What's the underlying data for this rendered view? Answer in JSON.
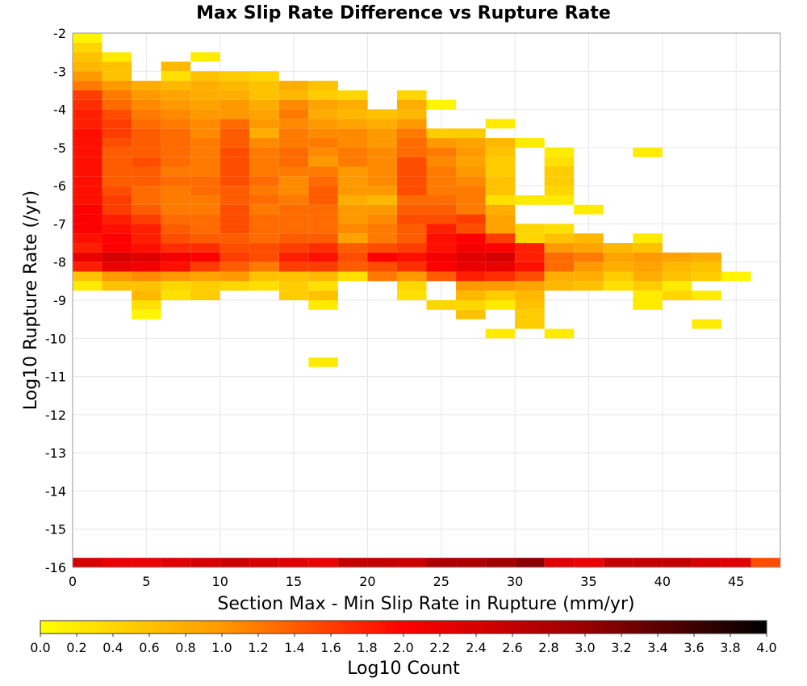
{
  "chart_data": {
    "type": "heatmap",
    "title": "Max Slip Rate Difference vs Rupture Rate",
    "xlabel": "Section Max - Min Slip Rate in Rupture (mm/yr)",
    "ylabel": "Log10 Rupture Rate (/yr)",
    "xlim": [
      0,
      48
    ],
    "ylim": [
      -16,
      -2
    ],
    "xticks": [
      "0",
      "5",
      "10",
      "15",
      "20",
      "25",
      "30",
      "35",
      "40",
      "45"
    ],
    "yticks": [
      "-2",
      "-3",
      "-4",
      "-5",
      "-6",
      "-7",
      "-8",
      "-9",
      "-10",
      "-11",
      "-12",
      "-13",
      "-14",
      "-15",
      "-16"
    ],
    "bin_width": {
      "x": 2,
      "y": 0.25
    },
    "grid": true,
    "colorbar": {
      "label": "Log10 Count",
      "min": 0.0,
      "max": 4.0,
      "ticks": [
        "0.0",
        "0.2",
        "0.4",
        "0.6",
        "0.8",
        "1.0",
        "1.2",
        "1.4",
        "1.6",
        "1.8",
        "2.0",
        "2.2",
        "2.4",
        "2.6",
        "2.8",
        "3.0",
        "3.2",
        "3.4",
        "3.6",
        "3.8",
        "4.0"
      ],
      "colors": [
        "#ffff00",
        "#ff9900",
        "#ff0000",
        "#990000",
        "#000000"
      ]
    },
    "rows": [
      {
        "y": -2.25,
        "values": {
          "0": 0.1
        }
      },
      {
        "y": -2.5,
        "values": {
          "0": 0.4
        }
      },
      {
        "y": -2.75,
        "values": {
          "0": 0.6,
          "2": 0.2,
          "8": 0.2
        }
      },
      {
        "y": -3.0,
        "values": {
          "0": 0.7,
          "2": 0.6,
          "6": 0.7
        }
      },
      {
        "y": -3.25,
        "values": {
          "0": 1.0,
          "2": 0.6,
          "6": 0.3,
          "8": 0.6,
          "10": 0.5,
          "12": 0.4
        }
      },
      {
        "y": -3.5,
        "values": {
          "0": 1.2,
          "2": 1.0,
          "4": 0.8,
          "6": 0.7,
          "8": 0.8,
          "10": 0.7,
          "12": 0.6,
          "14": 0.8,
          "16": 0.6
        }
      },
      {
        "y": -3.75,
        "values": {
          "0": 1.6,
          "2": 1.2,
          "4": 1.0,
          "6": 0.9,
          "8": 0.8,
          "10": 0.8,
          "12": 0.6,
          "14": 0.7,
          "16": 0.5,
          "18": 0.4,
          "22": 0.4
        }
      },
      {
        "y": -4.0,
        "values": {
          "0": 1.7,
          "2": 1.3,
          "4": 1.1,
          "6": 1.0,
          "8": 0.9,
          "10": 1.0,
          "12": 0.8,
          "14": 1.1,
          "16": 0.9,
          "18": 0.8,
          "22": 0.8,
          "24": 0.1
        }
      },
      {
        "y": -4.25,
        "values": {
          "0": 1.8,
          "2": 1.5,
          "4": 1.2,
          "6": 1.1,
          "8": 1.0,
          "10": 1.0,
          "12": 0.9,
          "14": 1.2,
          "16": 0.8,
          "18": 0.7,
          "20": 0.6,
          "22": 0.7
        }
      },
      {
        "y": -4.5,
        "values": {
          "0": 1.8,
          "2": 1.6,
          "4": 1.3,
          "6": 1.2,
          "8": 1.1,
          "10": 1.3,
          "12": 1.0,
          "14": 1.1,
          "16": 1.0,
          "18": 0.9,
          "20": 0.8,
          "22": 1.0,
          "28": 0.2
        }
      },
      {
        "y": -4.75,
        "values": {
          "0": 1.9,
          "2": 1.6,
          "4": 1.4,
          "6": 1.3,
          "8": 1.1,
          "10": 1.4,
          "12": 0.8,
          "14": 1.2,
          "16": 1.1,
          "18": 1.1,
          "20": 1.0,
          "22": 1.2,
          "24": 0.5,
          "26": 0.5
        }
      },
      {
        "y": -5.0,
        "values": {
          "0": 1.9,
          "2": 1.5,
          "4": 1.4,
          "6": 1.3,
          "8": 1.2,
          "10": 1.4,
          "12": 1.1,
          "14": 1.2,
          "16": 1.2,
          "18": 1.1,
          "20": 1.0,
          "22": 1.3,
          "24": 1.0,
          "26": 0.9,
          "28": 0.7,
          "30": 0.2
        }
      },
      {
        "y": -5.25,
        "values": {
          "0": 1.9,
          "2": 1.4,
          "4": 1.4,
          "6": 1.3,
          "8": 1.2,
          "10": 1.5,
          "12": 1.2,
          "14": 1.3,
          "16": 1.1,
          "18": 1.2,
          "20": 1.1,
          "22": 1.3,
          "24": 1.2,
          "26": 1.0,
          "28": 0.6,
          "32": 0.2,
          "38": 0.2
        }
      },
      {
        "y": -5.5,
        "values": {
          "0": 1.9,
          "2": 1.4,
          "4": 1.5,
          "6": 1.3,
          "8": 1.2,
          "10": 1.5,
          "12": 1.2,
          "14": 1.3,
          "16": 1.0,
          "18": 1.2,
          "20": 1.1,
          "22": 1.5,
          "24": 1.1,
          "26": 0.9,
          "28": 0.5,
          "32": 0.3
        }
      },
      {
        "y": -5.75,
        "values": {
          "0": 1.9,
          "2": 1.4,
          "4": 1.4,
          "6": 1.2,
          "8": 1.2,
          "10": 1.5,
          "12": 1.2,
          "14": 1.2,
          "16": 1.2,
          "18": 1.0,
          "20": 1.1,
          "22": 1.5,
          "24": 1.2,
          "26": 1.0,
          "28": 0.5,
          "32": 0.5
        }
      },
      {
        "y": -6.0,
        "values": {
          "0": 1.9,
          "2": 1.4,
          "4": 1.4,
          "6": 1.3,
          "8": 1.3,
          "10": 1.5,
          "12": 1.3,
          "14": 1.1,
          "16": 1.3,
          "18": 1.0,
          "20": 1.1,
          "22": 1.5,
          "24": 1.2,
          "26": 1.1,
          "28": 0.6,
          "32": 0.5
        }
      },
      {
        "y": -6.25,
        "values": {
          "0": 1.9,
          "2": 1.5,
          "4": 1.3,
          "6": 1.2,
          "8": 1.3,
          "10": 1.4,
          "12": 1.2,
          "14": 1.1,
          "16": 1.4,
          "18": 1.0,
          "20": 1.0,
          "22": 1.5,
          "24": 1.2,
          "26": 1.2,
          "28": 0.6,
          "32": 0.4
        }
      },
      {
        "y": -6.5,
        "values": {
          "0": 1.9,
          "2": 1.6,
          "4": 1.3,
          "6": 1.2,
          "8": 1.2,
          "10": 1.4,
          "12": 1.3,
          "14": 1.2,
          "16": 1.4,
          "18": 0.8,
          "20": 0.7,
          "22": 1.3,
          "24": 1.3,
          "26": 1.2,
          "28": 0.3,
          "30": 0.2,
          "32": 0.2
        }
      },
      {
        "y": -6.75,
        "values": {
          "0": 2.0,
          "2": 1.6,
          "4": 1.4,
          "6": 1.2,
          "8": 1.2,
          "10": 1.5,
          "12": 1.2,
          "14": 1.3,
          "16": 1.3,
          "18": 1.0,
          "20": 1.0,
          "22": 1.4,
          "24": 1.4,
          "26": 1.2,
          "28": 0.8,
          "34": 0.2
        }
      },
      {
        "y": -7.0,
        "values": {
          "0": 2.0,
          "2": 1.8,
          "4": 1.6,
          "6": 1.3,
          "8": 1.3,
          "10": 1.5,
          "12": 1.3,
          "14": 1.3,
          "16": 1.3,
          "18": 1.0,
          "20": 1.1,
          "22": 1.5,
          "24": 1.5,
          "26": 1.6,
          "28": 0.9
        }
      },
      {
        "y": -7.25,
        "values": {
          "0": 2.0,
          "2": 1.9,
          "4": 1.8,
          "6": 1.4,
          "8": 1.3,
          "10": 1.5,
          "12": 1.3,
          "14": 1.3,
          "16": 1.3,
          "18": 1.1,
          "20": 1.2,
          "22": 1.4,
          "24": 1.8,
          "26": 1.5,
          "28": 0.9,
          "30": 0.4,
          "32": 0.3
        }
      },
      {
        "y": -7.5,
        "values": {
          "0": 1.9,
          "2": 2.0,
          "4": 1.8,
          "6": 1.5,
          "8": 1.4,
          "10": 1.4,
          "12": 1.3,
          "14": 1.4,
          "16": 1.4,
          "18": 0.9,
          "20": 1.2,
          "22": 1.4,
          "24": 1.9,
          "26": 2.0,
          "28": 1.6,
          "30": 0.4,
          "32": 0.6,
          "34": 0.7,
          "38": 0.2
        }
      },
      {
        "y": -7.75,
        "values": {
          "0": 1.8,
          "2": 2.0,
          "4": 1.9,
          "6": 1.7,
          "8": 1.7,
          "10": 1.5,
          "12": 1.5,
          "14": 1.6,
          "16": 1.7,
          "18": 1.4,
          "20": 1.5,
          "22": 1.6,
          "24": 1.9,
          "26": 2.1,
          "28": 2.0,
          "30": 1.8,
          "32": 1.0,
          "34": 0.9,
          "36": 0.7,
          "38": 0.6
        }
      },
      {
        "y": -8.0,
        "values": {
          "0": 2.2,
          "2": 2.4,
          "4": 2.3,
          "6": 2.1,
          "8": 2.0,
          "10": 1.6,
          "12": 1.5,
          "14": 1.8,
          "16": 1.9,
          "18": 1.5,
          "20": 2.0,
          "22": 1.9,
          "24": 2.1,
          "26": 2.3,
          "28": 2.4,
          "30": 1.8,
          "32": 1.3,
          "34": 1.2,
          "36": 0.9,
          "38": 1.0,
          "40": 0.9,
          "42": 0.8
        }
      },
      {
        "y": -8.25,
        "values": {
          "0": 1.8,
          "2": 2.2,
          "4": 2.1,
          "6": 1.9,
          "8": 1.6,
          "10": 1.4,
          "12": 1.2,
          "14": 1.6,
          "16": 1.6,
          "18": 1.4,
          "20": 1.5,
          "22": 1.7,
          "24": 2.0,
          "26": 2.2,
          "28": 2.2,
          "30": 1.9,
          "32": 1.3,
          "34": 1.0,
          "36": 0.8,
          "38": 0.9,
          "40": 0.7,
          "42": 0.6
        }
      },
      {
        "y": -8.5,
        "values": {
          "0": 0.6,
          "2": 1.0,
          "4": 1.1,
          "6": 1.0,
          "8": 0.9,
          "10": 1.0,
          "12": 0.6,
          "14": 0.6,
          "16": 0.7,
          "18": 0.3,
          "20": 1.2,
          "22": 1.0,
          "24": 1.4,
          "26": 1.8,
          "28": 1.7,
          "30": 1.5,
          "32": 0.8,
          "34": 0.8,
          "36": 0.5,
          "38": 0.8,
          "40": 0.6,
          "42": 0.5,
          "44": 0.1
        }
      },
      {
        "y": -8.75,
        "values": {
          "0": 0.2,
          "2": 0.6,
          "4": 0.6,
          "6": 0.4,
          "8": 0.5,
          "10": 0.4,
          "12": 0.3,
          "14": 0.5,
          "16": 0.3,
          "22": 0.4,
          "26": 1.0,
          "28": 1.0,
          "30": 0.9,
          "32": 0.7,
          "34": 0.6,
          "36": 0.3,
          "38": 0.5,
          "40": 0.2
        }
      },
      {
        "y": -9.0,
        "values": {
          "4": 0.7,
          "6": 0.3,
          "8": 0.5,
          "14": 0.5,
          "16": 0.6,
          "22": 0.3,
          "26": 0.7,
          "28": 0.5,
          "30": 0.7,
          "38": 0.2,
          "40": 0.4,
          "42": 0.2
        }
      },
      {
        "y": -9.25,
        "values": {
          "4": 0.3,
          "16": 0.2,
          "24": 0.4,
          "26": 0.4,
          "28": 0.2,
          "30": 0.6,
          "38": 0.2
        }
      },
      {
        "y": -9.5,
        "values": {
          "4": 0.1,
          "26": 0.6,
          "30": 0.5
        }
      },
      {
        "y": -9.75,
        "values": {
          "30": 0.5,
          "42": 0.2
        }
      },
      {
        "y": -10.0,
        "values": {
          "28": 0.2,
          "32": 0.2
        }
      },
      {
        "y": -10.75,
        "values": {
          "16": 0.2
        }
      },
      {
        "y": -16.0,
        "values": {
          "0": 2.4,
          "2": 2.2,
          "4": 2.2,
          "6": 2.3,
          "8": 2.4,
          "10": 2.5,
          "12": 2.4,
          "14": 2.3,
          "16": 2.2,
          "18": 2.6,
          "20": 2.6,
          "22": 2.5,
          "24": 2.8,
          "26": 2.8,
          "28": 2.9,
          "30": 3.1,
          "32": 2.3,
          "34": 2.2,
          "36": 2.6,
          "38": 2.6,
          "40": 2.6,
          "42": 2.4,
          "44": 2.3,
          "46": 1.5
        }
      }
    ]
  }
}
